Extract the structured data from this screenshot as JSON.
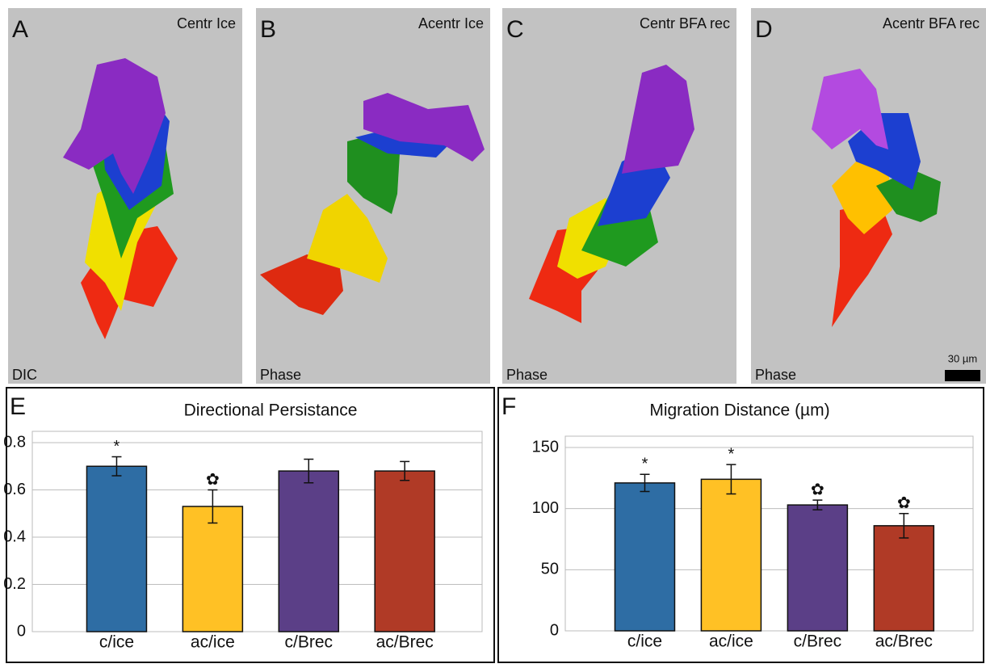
{
  "panels": [
    {
      "letter": "A",
      "title": "Centr Ice",
      "mode": "DIC"
    },
    {
      "letter": "B",
      "title": "Acentr Ice",
      "mode": "Phase"
    },
    {
      "letter": "C",
      "title": "Centr BFA rec",
      "mode": "Phase"
    },
    {
      "letter": "D",
      "title": "Acentr BFA rec",
      "mode": "Phase"
    }
  ],
  "scale_bar": "30 µm",
  "chart_data": [
    {
      "type": "bar",
      "letter": "E",
      "title": "Directional Persistance",
      "categories": [
        "c/ice",
        "ac/ice",
        "c/Brec",
        "ac/Brec"
      ],
      "values": [
        0.7,
        0.53,
        0.68,
        0.68
      ],
      "errors": [
        0.04,
        0.07,
        0.05,
        0.04
      ],
      "markers": [
        "*",
        "✿",
        null,
        null
      ],
      "colors": [
        "#2e6da4",
        "#ffc125",
        "#5b3f87",
        "#b03a26"
      ],
      "ylim": [
        0,
        0.8
      ],
      "yticks": [
        0,
        0.2,
        0.4,
        0.6,
        0.8
      ],
      "grid": true
    },
    {
      "type": "bar",
      "letter": "F",
      "title": "Migration Distance (µm)",
      "categories": [
        "c/ice",
        "ac/ice",
        "c/Brec",
        "ac/Brec"
      ],
      "values": [
        121,
        124,
        103,
        86
      ],
      "errors": [
        7,
        12,
        4,
        10
      ],
      "markers": [
        "*",
        "*",
        "✿",
        "✿"
      ],
      "colors": [
        "#2e6da4",
        "#ffc125",
        "#5b3f87",
        "#b03a26"
      ],
      "ylim": [
        0,
        150
      ],
      "yticks": [
        0,
        50,
        100,
        150
      ],
      "grid": true
    }
  ]
}
